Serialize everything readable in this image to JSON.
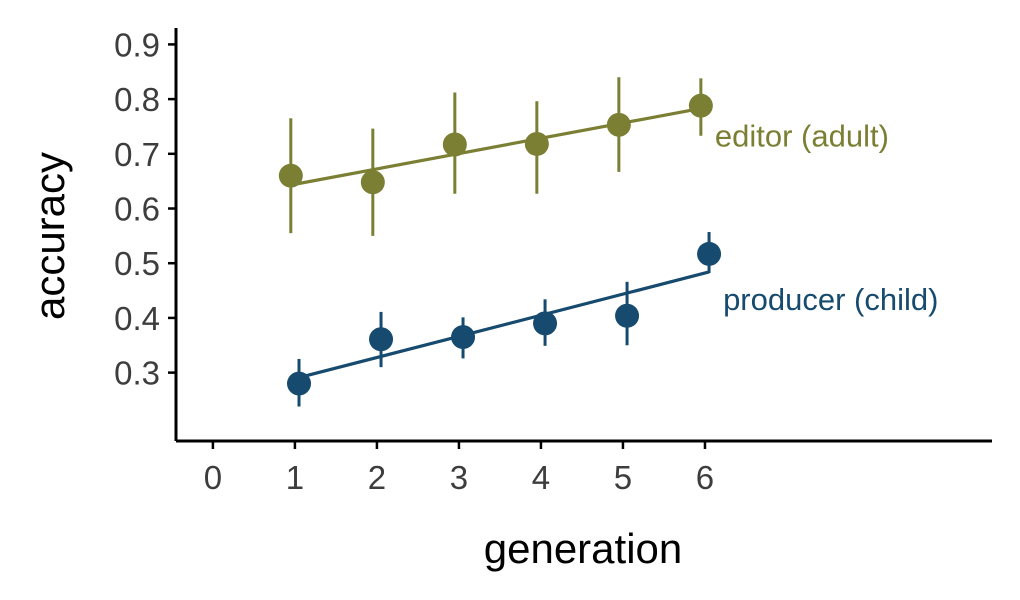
{
  "chart_data": {
    "type": "scatter",
    "xlabel": "generation",
    "ylabel": "accuracy",
    "x_ticks": [
      0,
      1,
      2,
      3,
      4,
      5,
      6
    ],
    "y_ticks": [
      0.3,
      0.4,
      0.5,
      0.6,
      0.7,
      0.8,
      0.9
    ],
    "xlim": [
      -0.45,
      9.5
    ],
    "ylim": [
      0.175,
      0.93
    ],
    "grid": false,
    "legend": "none",
    "series": [
      {
        "name": "editor (adult)",
        "color": "#7b7f33",
        "points": [
          {
            "x": 0.95,
            "y": 0.66,
            "low": 0.555,
            "high": 0.765
          },
          {
            "x": 1.95,
            "y": 0.648,
            "low": 0.55,
            "high": 0.746
          },
          {
            "x": 2.95,
            "y": 0.717,
            "low": 0.627,
            "high": 0.812
          },
          {
            "x": 3.95,
            "y": 0.718,
            "low": 0.627,
            "high": 0.796
          },
          {
            "x": 4.95,
            "y": 0.753,
            "low": 0.667,
            "high": 0.84
          },
          {
            "x": 5.95,
            "y": 0.788,
            "low": 0.733,
            "high": 0.838
          }
        ],
        "fit": {
          "x0": 0.95,
          "y0": 0.643,
          "x1": 5.95,
          "y1": 0.783
        }
      },
      {
        "name": "producer (child)",
        "color": "#164a6e",
        "points": [
          {
            "x": 1.05,
            "y": 0.28,
            "low": 0.238,
            "high": 0.325
          },
          {
            "x": 2.05,
            "y": 0.361,
            "low": 0.31,
            "high": 0.411
          },
          {
            "x": 3.05,
            "y": 0.365,
            "low": 0.326,
            "high": 0.401
          },
          {
            "x": 4.05,
            "y": 0.39,
            "low": 0.349,
            "high": 0.434
          },
          {
            "x": 5.05,
            "y": 0.404,
            "low": 0.35,
            "high": 0.466
          },
          {
            "x": 6.05,
            "y": 0.517,
            "low": 0.482,
            "high": 0.557
          }
        ],
        "fit": {
          "x0": 1.05,
          "y0": 0.291,
          "x1": 6.05,
          "y1": 0.484
        }
      }
    ]
  }
}
